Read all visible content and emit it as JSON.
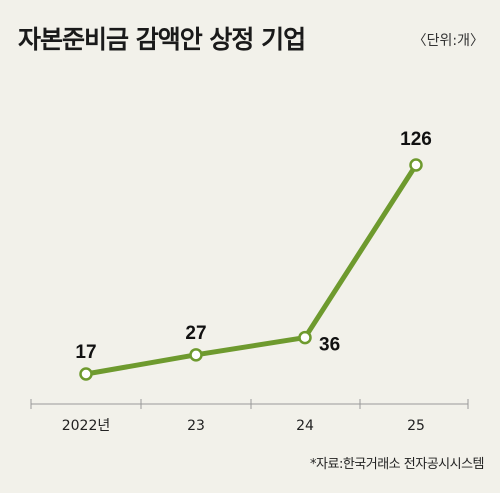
{
  "header": {
    "title": "자본준비금 감액안 상정 기업",
    "unit": "〈단위:개〉"
  },
  "footer": {
    "source": "*자료:한국거래소 전자공시시스템"
  },
  "colors": {
    "line": "#6e9a2e",
    "background": "#f2f1ea",
    "axis": "#999999"
  },
  "chart_data": {
    "type": "line",
    "title": "자본준비금 감액안 상정 기업",
    "categories": [
      "2022년",
      "23",
      "24",
      "25"
    ],
    "series": [
      {
        "values": [
          17,
          27,
          36,
          126
        ]
      }
    ],
    "data_labels": [
      "17",
      "27",
      "36",
      "126"
    ],
    "grid": false,
    "legend": "none"
  }
}
